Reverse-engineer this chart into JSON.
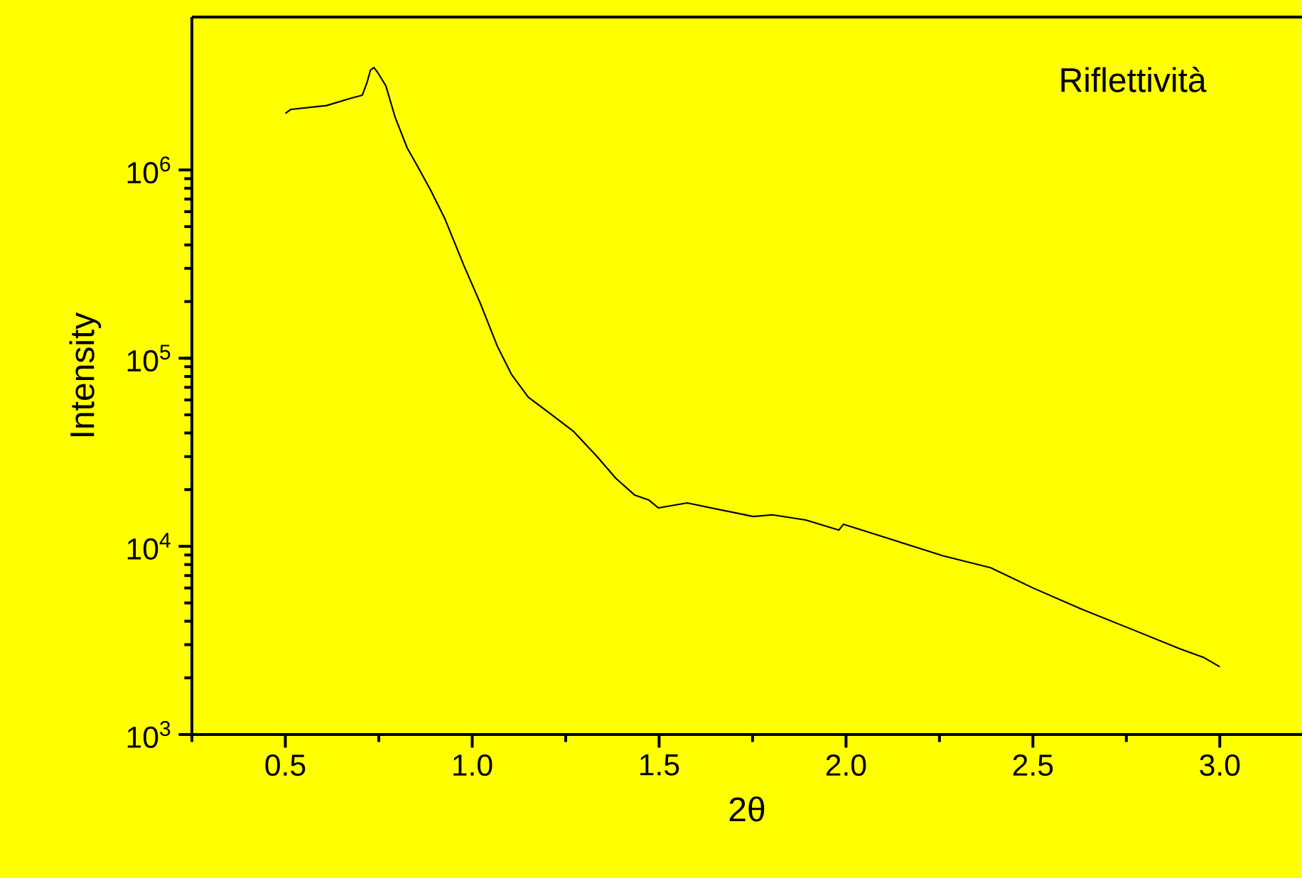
{
  "chart_data": {
    "type": "line",
    "xlabel": "2θ",
    "ylabel": "Intensity",
    "annotations": [
      "Riflettività"
    ],
    "log": true,
    "color": "#000000",
    "x": [
      0.5,
      0.515,
      0.61,
      0.674,
      0.706,
      0.718,
      0.728,
      0.737,
      0.747,
      0.769,
      0.794,
      0.826,
      0.851,
      0.889,
      0.927,
      0.978,
      1.022,
      1.067,
      1.105,
      1.15,
      1.207,
      1.27,
      1.334,
      1.384,
      1.435,
      1.473,
      1.498,
      1.575,
      1.752,
      1.803,
      1.892,
      1.981,
      1.993,
      2.133,
      2.26,
      2.387,
      2.501,
      2.628,
      2.768,
      2.894,
      2.958,
      3.0
    ],
    "values": [
      2000000.0,
      2100000.0,
      2200000.0,
      2400000.0,
      2500000.0,
      2900000.0,
      3400000.0,
      3500000.0,
      3300000.0,
      2800000.0,
      1900000.0,
      1310000.0,
      1070000.0,
      780000.0,
      550000.0,
      310000.0,
      195000.0,
      116000.0,
      82000.0,
      62000.0,
      51000.0,
      41000.0,
      30000.0,
      23000.0,
      18700.0,
      17600.0,
      16000.0,
      17000.0,
      14400.0,
      14700.0,
      13800.0,
      12200.0,
      13100.0,
      10700.0,
      8900.0,
      7700.0,
      6000.0,
      4660.0,
      3600.0,
      2850.0,
      2560.0,
      2290.0
    ],
    "xlim": [
      0.25,
      3.22
    ],
    "xticks": [
      {
        "value": 0.25,
        "label": null
      },
      0.5,
      {
        "value": 0.75,
        "label": null
      },
      {
        "value": 1.0,
        "label": "1.0"
      },
      {
        "value": 1.25,
        "label": null
      },
      1.5,
      {
        "value": 1.75,
        "label": null
      },
      {
        "value": 2.0,
        "label": "2.0"
      },
      {
        "value": 2.25,
        "label": null
      },
      2.5,
      {
        "value": 2.75,
        "label": null
      },
      {
        "value": 3.0,
        "label": "3.0"
      }
    ],
    "ylim": [
      1000,
      6500000
    ],
    "yticks": [
      {
        "value": 1000,
        "label": "10$^{3}$"
      },
      {
        "value": 10000,
        "label": "10$^{4}$"
      },
      {
        "value": 100000,
        "label": "10$^{5}$"
      },
      {
        "value": 1000000,
        "label": "10$^{6}$"
      }
    ]
  }
}
